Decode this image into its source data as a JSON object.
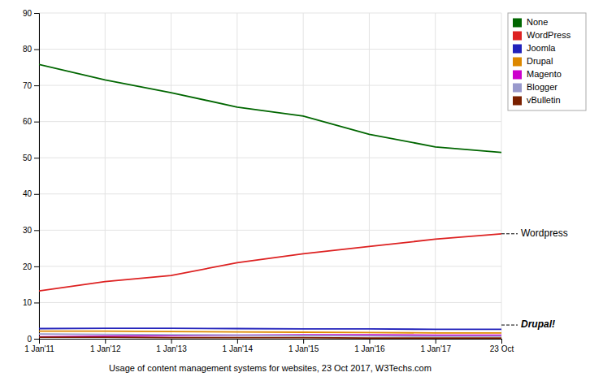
{
  "chart_data": {
    "type": "line",
    "x_label": "Usage of content management systems for websites, 23 Oct 2017, W3Techs.com",
    "categories": [
      "1 Jan'11",
      "1 Jan'12",
      "1 Jan'13",
      "1 Jan'14",
      "1 Jan'15",
      "1 Jan'16",
      "1 Jan'17",
      "23 Oct"
    ],
    "series": [
      {
        "name": "None",
        "color": "#006600",
        "values": [
          75.8,
          71.5,
          68.0,
          64.0,
          61.5,
          56.5,
          53.0,
          51.5
        ]
      },
      {
        "name": "WordPress",
        "color": "#dd2222",
        "values": [
          13.2,
          15.8,
          17.5,
          21.0,
          23.5,
          25.5,
          27.5,
          29.0
        ]
      },
      {
        "name": "Joomla",
        "color": "#2222bb",
        "values": [
          2.8,
          2.9,
          2.9,
          2.8,
          2.7,
          2.7,
          2.6,
          2.6
        ]
      },
      {
        "name": "Drupal",
        "color": "#dd8800",
        "values": [
          2.1,
          2.1,
          2.0,
          1.9,
          1.8,
          1.7,
          1.6,
          1.6
        ]
      },
      {
        "name": "Magento",
        "color": "#cc00cc",
        "values": [
          0.5,
          0.7,
          0.9,
          1.0,
          1.1,
          1.1,
          1.0,
          1.0
        ]
      },
      {
        "name": "Blogger",
        "color": "#9999cc",
        "values": [
          1.3,
          1.2,
          1.1,
          1.0,
          0.9,
          0.8,
          0.7,
          0.7
        ]
      },
      {
        "name": "vBulletin",
        "color": "#7a2000",
        "values": [
          0.4,
          0.4,
          0.3,
          0.3,
          0.3,
          0.2,
          0.2,
          0.2
        ]
      }
    ],
    "ylim": [
      0,
      90
    ],
    "yticks": [
      0,
      10,
      20,
      30,
      40,
      50,
      60,
      70,
      80,
      90
    ],
    "grid": true,
    "legend": "top-right",
    "annotations": [
      {
        "text": "Wordpress",
        "y": 29.0
      },
      {
        "text": "Drupal!",
        "y": 3.8
      }
    ]
  }
}
